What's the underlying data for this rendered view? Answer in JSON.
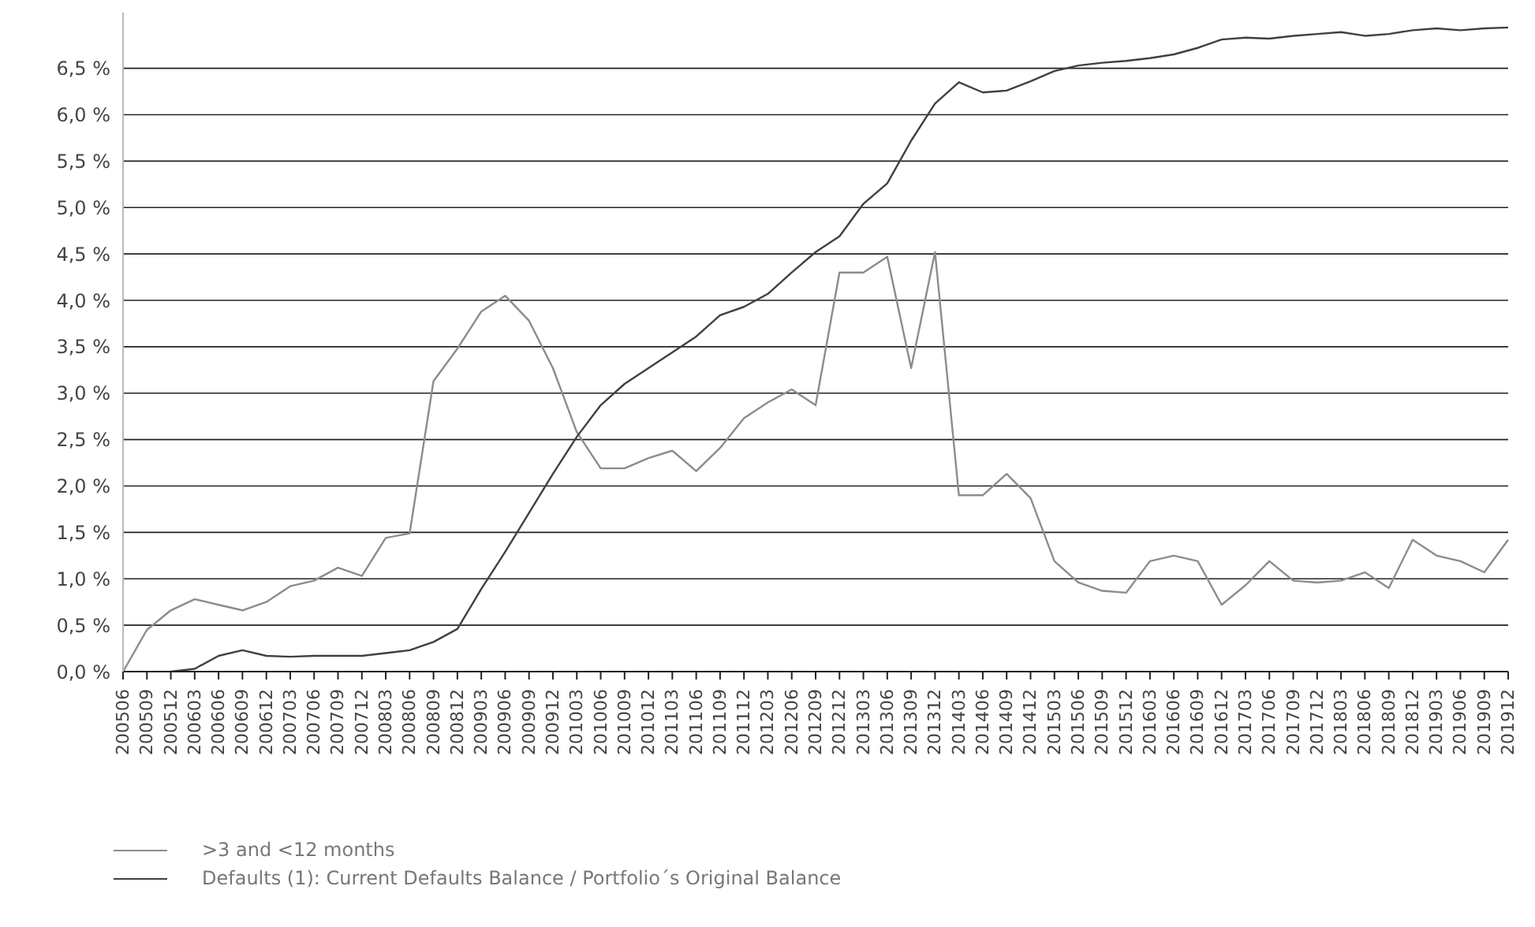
{
  "chart_data": {
    "type": "line",
    "categories": [
      "200506",
      "200509",
      "200512",
      "200603",
      "200606",
      "200609",
      "200612",
      "200703",
      "200706",
      "200709",
      "200712",
      "200803",
      "200806",
      "200809",
      "200812",
      "200903",
      "200906",
      "200909",
      "200912",
      "201003",
      "201006",
      "201009",
      "201012",
      "201103",
      "201106",
      "201109",
      "201112",
      "201203",
      "201206",
      "201209",
      "201212",
      "201303",
      "201306",
      "201309",
      "201312",
      "201403",
      "201406",
      "201409",
      "201412",
      "201503",
      "201506",
      "201509",
      "201512",
      "201603",
      "201606",
      "201609",
      "201612",
      "201703",
      "201706",
      "201709",
      "201712",
      "201803",
      "201806",
      "201809",
      "201812",
      "201903",
      "201906",
      "201909",
      "201912"
    ],
    "series": [
      {
        "name": ">3 and <12 months",
        "color": "#8c8c8c",
        "values": [
          0.0,
          0.45,
          0.66,
          0.78,
          0.72,
          0.66,
          0.75,
          0.92,
          0.98,
          1.12,
          1.03,
          1.44,
          1.49,
          3.13,
          3.48,
          3.88,
          4.05,
          3.78,
          3.27,
          2.58,
          2.19,
          2.19,
          2.3,
          2.38,
          2.16,
          2.41,
          2.73,
          2.9,
          3.04,
          2.87,
          4.3,
          4.3,
          4.47,
          3.27,
          4.52,
          1.9,
          1.9,
          2.13,
          1.87,
          1.19,
          0.96,
          0.87,
          0.85,
          1.19,
          1.25,
          1.19,
          0.72,
          0.93,
          1.19,
          0.98,
          0.96,
          0.98,
          1.07,
          0.9,
          1.42,
          1.25,
          1.19,
          1.07,
          1.42
        ]
      },
      {
        "name": "Defaults (1): Current Defaults Balance / Portfolio´s Original Balance",
        "color": "#404040",
        "values": [
          null,
          null,
          0.0,
          0.03,
          0.17,
          0.23,
          0.17,
          0.16,
          0.17,
          0.17,
          0.17,
          0.2,
          0.23,
          0.32,
          0.46,
          0.89,
          1.29,
          1.71,
          2.13,
          2.53,
          2.87,
          3.1,
          3.27,
          3.44,
          3.61,
          3.84,
          3.93,
          4.07,
          4.3,
          4.52,
          4.69,
          5.04,
          5.26,
          5.72,
          6.12,
          6.35,
          6.24,
          6.26,
          6.36,
          6.47,
          6.53,
          6.56,
          6.58,
          6.61,
          6.65,
          6.72,
          6.81,
          6.83,
          6.82,
          6.85,
          6.87,
          6.89,
          6.85,
          6.87,
          6.91,
          6.93,
          6.91,
          6.93,
          6.94
        ]
      }
    ],
    "ylim": [
      0,
      7.1
    ],
    "yticks": [
      {
        "value": 0,
        "label": "0,0 %"
      },
      {
        "value": 0.5,
        "label": "0,5 %"
      },
      {
        "value": 1,
        "label": "1,0 %"
      },
      {
        "value": 1.5,
        "label": "1,5 %"
      },
      {
        "value": 2,
        "label": "2,0 %"
      },
      {
        "value": 2.5,
        "label": "2,5 %"
      },
      {
        "value": 3,
        "label": "3,0 %"
      },
      {
        "value": 3.5,
        "label": "3,5 %"
      },
      {
        "value": 4,
        "label": "4,0 %"
      },
      {
        "value": 4.5,
        "label": "4,5 %"
      },
      {
        "value": 5,
        "label": "5,0 %"
      },
      {
        "value": 5.5,
        "label": "5,5 %"
      },
      {
        "value": 6,
        "label": "6,0 %"
      },
      {
        "value": 6.5,
        "label": "6,5 %"
      }
    ],
    "grid": "y",
    "legend": "bottom left",
    "marker": "none",
    "line_style": "solid"
  }
}
